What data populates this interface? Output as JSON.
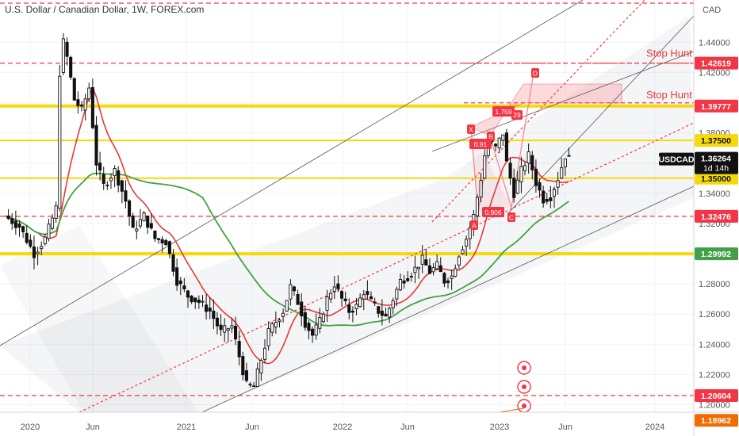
{
  "chart_data": {
    "type": "candlestick",
    "title": "U.S. Dollar / Canadian Dollar, 1W, FOREX.com",
    "currency": "CAD",
    "symbol": "USDCAD",
    "last_price": 1.36264,
    "countdown": "1d 14h",
    "x_labels": [
      "2020",
      "Jun",
      "2021",
      "Jun",
      "2022",
      "Jun",
      "2023",
      "Jun",
      "2024"
    ],
    "y_ticks": [
      1.2,
      1.22,
      1.24,
      1.26,
      1.28,
      1.3,
      1.32,
      1.34,
      1.36,
      1.38,
      1.4,
      1.42,
      1.44
    ],
    "y_range": [
      1.195,
      1.468
    ],
    "price_tags": [
      {
        "value": 1.42619,
        "label": "1.42619",
        "color": "#f23645"
      },
      {
        "value": 1.39777,
        "label": "1.39777",
        "color": "#f23645"
      },
      {
        "value": 1.375,
        "label": "1.37500",
        "color": "#f5d90a"
      },
      {
        "value": 1.35,
        "label": "1.35000",
        "color": "#f5d90a"
      },
      {
        "value": 1.32476,
        "label": "1.32476",
        "color": "#f23645"
      },
      {
        "value": 1.29992,
        "label": "1.29992",
        "color": "#43a047"
      },
      {
        "value": 1.20604,
        "label": "1.20604",
        "color": "#f23645"
      },
      {
        "value": 1.18962,
        "label": "1.18962",
        "color": "#ef6c00"
      }
    ],
    "annotations": [
      "Stop Hunt",
      "Stop Hunt"
    ],
    "harmonic_points": [
      "X",
      "A",
      "B",
      "C",
      "D"
    ],
    "ratios": [
      "0.91",
      "0.906",
      "1.759"
    ],
    "small_tag": "29",
    "colors": {
      "up": "#ffffff",
      "down": "#111111",
      "ma_fast": "#e53935",
      "ma_slow": "#43a047",
      "support": "#f5d90a",
      "resistance": "#f23645",
      "trend": "#555555"
    }
  }
}
